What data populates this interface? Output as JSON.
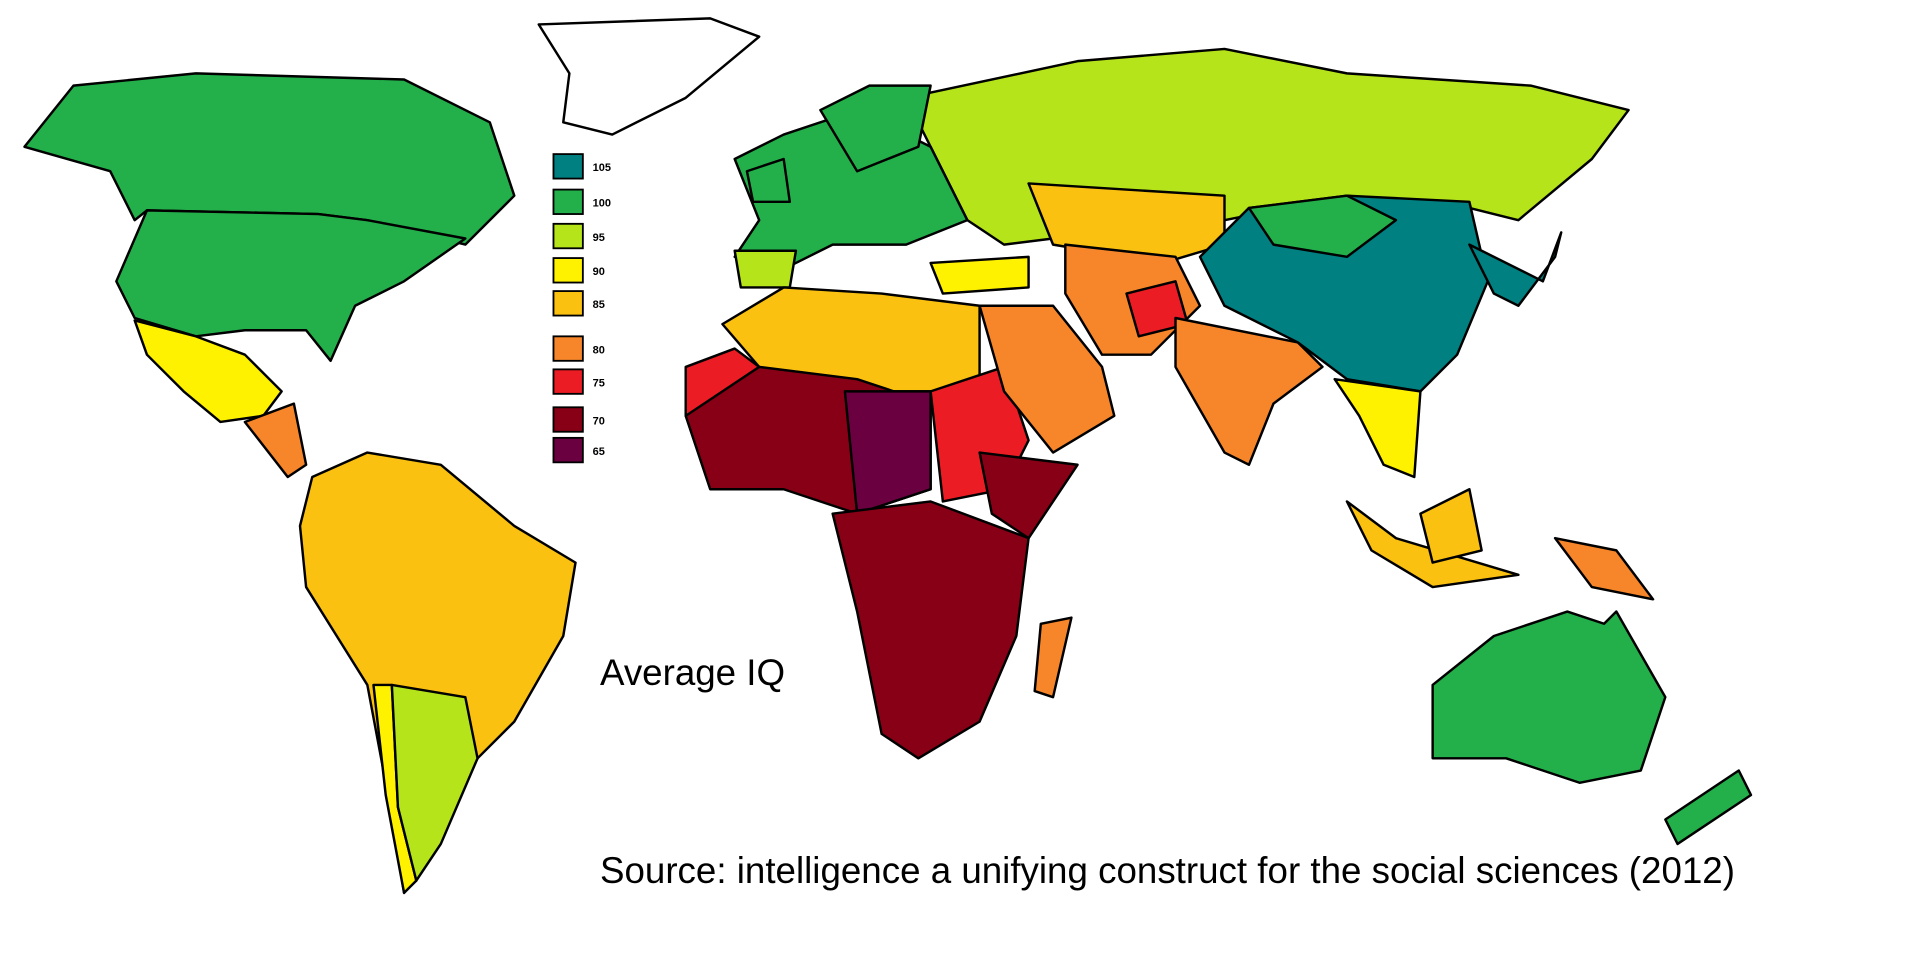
{
  "title": "Average IQ",
  "source": "Source: intelligence a unifying construct for the social sciences (2012)",
  "legend": [
    {
      "label": "105",
      "color": "#008080"
    },
    {
      "label": "100",
      "color": "#23b04b"
    },
    {
      "label": "95",
      "color": "#b5e41a"
    },
    {
      "label": "90",
      "color": "#fff200"
    },
    {
      "label": "85",
      "color": "#fbc110"
    },
    {
      "label": "80",
      "color": "#f7862a"
    },
    {
      "label": "75",
      "color": "#ec1c24"
    },
    {
      "label": "70",
      "color": "#880015"
    },
    {
      "label": "65",
      "color": "#6b0040"
    }
  ]
}
